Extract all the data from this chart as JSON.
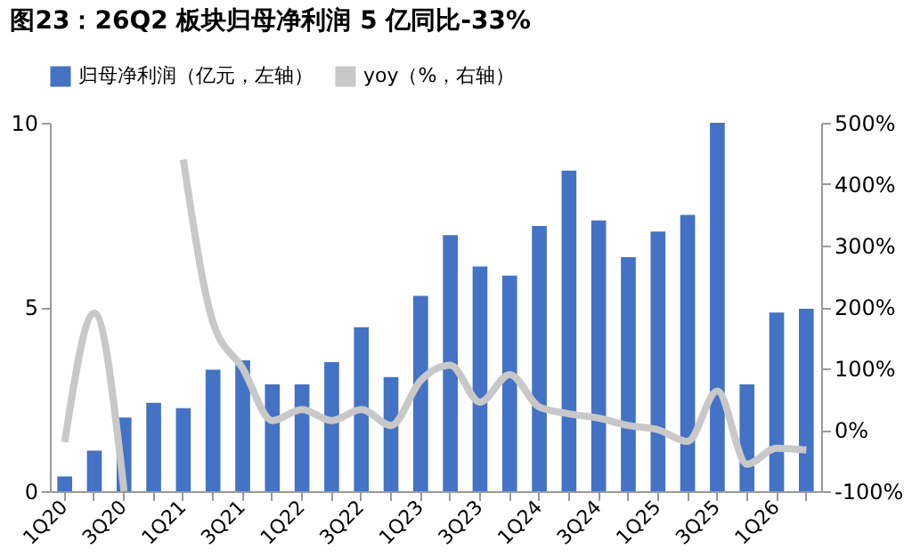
{
  "chart_data": {
    "type": "bar",
    "title": "图23：26Q2 板块归母净利润 5 亿同比-33%",
    "categories": [
      "1Q20",
      null,
      "3Q20",
      null,
      "1Q21",
      null,
      "3Q21",
      null,
      "1Q22",
      null,
      "3Q22",
      null,
      "1Q23",
      null,
      "3Q23",
      null,
      "1Q24",
      null,
      "3Q24",
      null,
      "1Q25",
      null,
      "3Q25",
      null,
      "1Q26",
      null
    ],
    "series": [
      {
        "name": "归母净利润（亿元，左轴）",
        "color": "#4472c4",
        "values": [
          0.4,
          1.1,
          2.0,
          2.4,
          2.25,
          3.3,
          3.55,
          2.9,
          2.9,
          3.5,
          4.45,
          3.1,
          5.3,
          6.95,
          6.1,
          5.85,
          7.2,
          8.7,
          7.35,
          6.35,
          7.05,
          7.5,
          10.0,
          2.9,
          4.85,
          4.95
        ]
      },
      {
        "name": "yoy（%，右轴）",
        "type": "line",
        "axis": "y2",
        "color": "#c8c8c8",
        "values": [
          -20,
          190,
          -100,
          null,
          440,
          175,
          100,
          15,
          33,
          15,
          33,
          7,
          80,
          105,
          45,
          90,
          37,
          26,
          19,
          7,
          0,
          -19,
          63,
          -56,
          -30,
          -33
        ]
      }
    ],
    "ylim": [
      0,
      10
    ],
    "yticks": [
      0,
      5,
      10
    ],
    "y2lim": [
      -100,
      500
    ],
    "y2ticks": [
      {
        "value": -100,
        "label": "-100%"
      },
      {
        "value": 0,
        "label": "0%"
      },
      {
        "value": 100,
        "label": "100%"
      },
      {
        "value": 200,
        "label": "200%"
      },
      {
        "value": 300,
        "label": "300%"
      },
      {
        "value": 400,
        "label": "400%"
      },
      {
        "value": 500,
        "label": "500%"
      }
    ],
    "legend": "top",
    "grid": false
  }
}
